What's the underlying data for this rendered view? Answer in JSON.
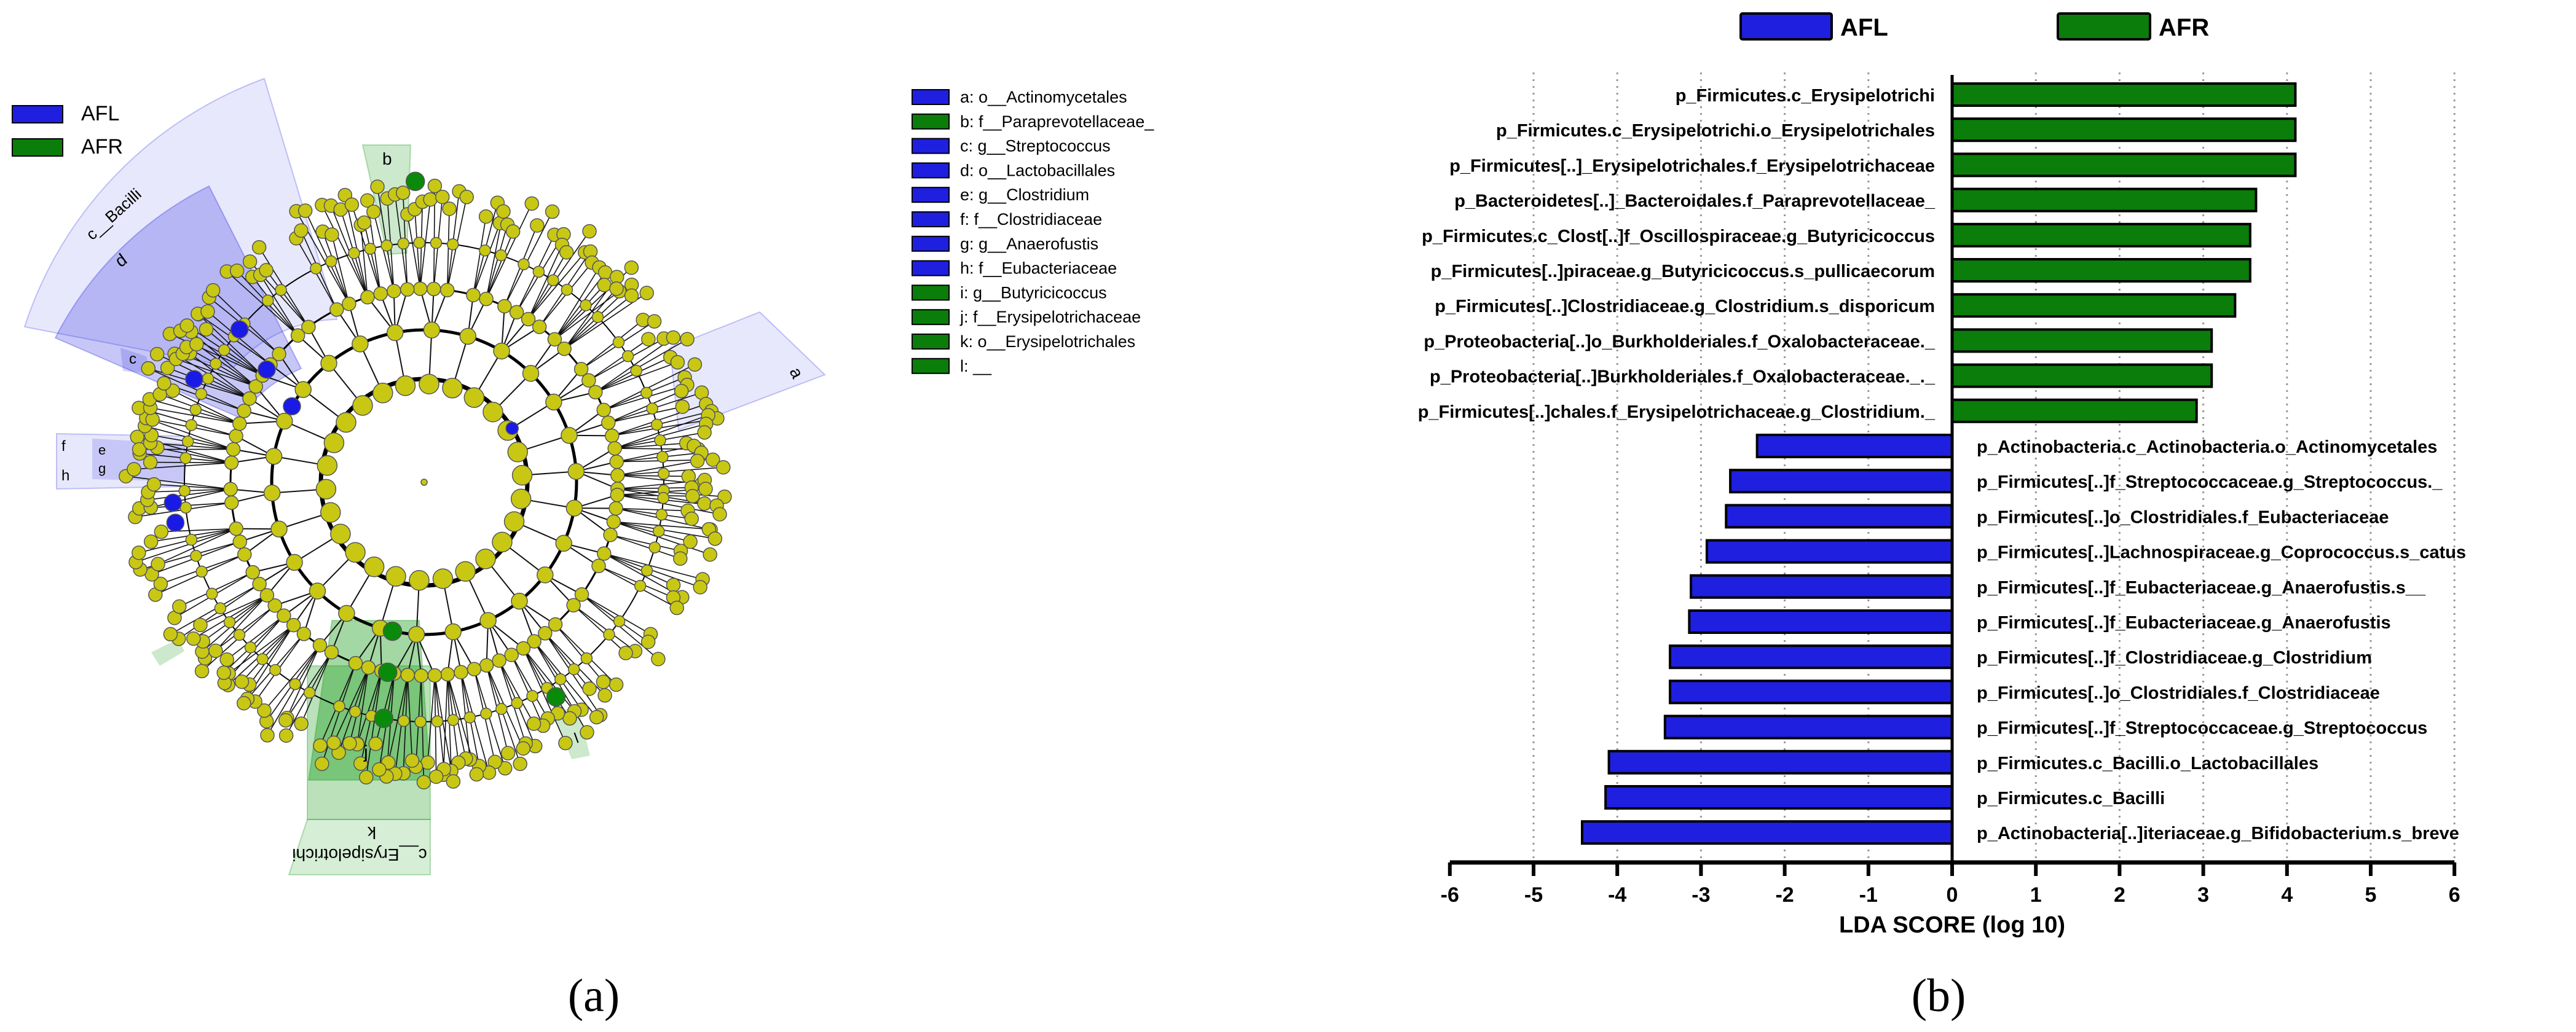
{
  "panel_a": {
    "caption": "(a)",
    "legend": [
      {
        "label": "AFL",
        "color": "#1f1fe0"
      },
      {
        "label": "AFR",
        "color": "#0a7d0a"
      }
    ],
    "key": [
      {
        "text": "a: o__Actinomycetales",
        "group": "AFL"
      },
      {
        "text": "b: f__Paraprevotellaceae_",
        "group": "AFR"
      },
      {
        "text": "c: g__Streptococcus",
        "group": "AFL"
      },
      {
        "text": "d: o__Lactobacillales",
        "group": "AFL"
      },
      {
        "text": "e: g__Clostridium",
        "group": "AFL"
      },
      {
        "text": "f: f__Clostridiaceae",
        "group": "AFL"
      },
      {
        "text": "g: g__Anaerofustis",
        "group": "AFL"
      },
      {
        "text": "h: f__Eubacteriaceae",
        "group": "AFL"
      },
      {
        "text": "i: g__Butyricicoccus",
        "group": "AFR"
      },
      {
        "text": "j: f__Erysipelotrichaceae",
        "group": "AFR"
      },
      {
        "text": "k: o__Erysipelotrichales",
        "group": "AFR"
      },
      {
        "text": "l: __",
        "group": "AFR"
      }
    ],
    "clade_labels": {
      "bacilli": "c__Bacilli",
      "erysipelotrichi": "c__Erysipelotrichi",
      "d": "d",
      "b": "b",
      "a": "a",
      "c": "c",
      "e": "e",
      "f": "f",
      "g": "g",
      "h": "h",
      "j": "j",
      "k": "k",
      "l": "l"
    },
    "colors": {
      "node": "#c8c814",
      "afl_node": "#1a1ae6",
      "afr_node": "#0a8a0a",
      "afl_shade": "#1f1fe0",
      "afr_shade": "#1a9a1a"
    }
  },
  "chart_data": {
    "type": "bar",
    "orientation": "horizontal",
    "caption": "(b)",
    "xlabel": "LDA SCORE (log 10)",
    "xlim": [
      -6,
      6
    ],
    "xticks": [
      -6,
      -5,
      -4,
      -3,
      -2,
      -1,
      0,
      1,
      2,
      3,
      4,
      5,
      6
    ],
    "grid": "vertical dotted",
    "legend_position": "top",
    "legend": [
      {
        "name": "AFL",
        "color": "#1f1fe0"
      },
      {
        "name": "AFR",
        "color": "#0a7d0a"
      }
    ],
    "bars": [
      {
        "label": "p_Firmicutes.c_Erysipelotrichi",
        "value": 4.1,
        "group": "AFR"
      },
      {
        "label": "p_Firmicutes.c_Erysipelotrichi.o_Erysipelotrichales",
        "value": 4.1,
        "group": "AFR"
      },
      {
        "label": "p_Firmicutes[..]_Erysipelotrichales.f_Erysipelotrichaceae",
        "value": 4.1,
        "group": "AFR"
      },
      {
        "label": "p_Bacteroidetes[..]_Bacteroidales.f_Paraprevotellaceae_",
        "value": 3.63,
        "group": "AFR"
      },
      {
        "label": "p_Firmicutes.c_Clost[..]f_Oscillospiraceae.g_Butyricicoccus",
        "value": 3.56,
        "group": "AFR"
      },
      {
        "label": "p_Firmicutes[..]piraceae.g_Butyricicoccus.s_pullicaecorum",
        "value": 3.56,
        "group": "AFR"
      },
      {
        "label": "p_Firmicutes[..]Clostridiaceae.g_Clostridium.s_disporicum",
        "value": 3.38,
        "group": "AFR"
      },
      {
        "label": "p_Proteobacteria[..]o_Burkholderiales.f_Oxalobacteraceae._",
        "value": 3.1,
        "group": "AFR"
      },
      {
        "label": "p_Proteobacteria[..]Burkholderiales.f_Oxalobacteraceae._._",
        "value": 3.1,
        "group": "AFR"
      },
      {
        "label": "p_Firmicutes[..]chales.f_Erysipelotrichaceae.g_Clostridium._",
        "value": 2.92,
        "group": "AFR"
      },
      {
        "label": "p_Actinobacteria.c_Actinobacteria.o_Actinomycetales",
        "value": -2.33,
        "group": "AFL"
      },
      {
        "label": "p_Firmicutes[..]f_Streptococcaceae.g_Streptococcus._",
        "value": -2.65,
        "group": "AFL"
      },
      {
        "label": "p_Firmicutes[..]o_Clostridiales.f_Eubacteriaceae",
        "value": -2.7,
        "group": "AFL"
      },
      {
        "label": "p_Firmicutes[..]Lachnospiraceae.g_Coprococcus.s_catus",
        "value": -2.93,
        "group": "AFL"
      },
      {
        "label": "p_Firmicutes[..]f_Eubacteriaceae.g_Anaerofustis.s__",
        "value": -3.12,
        "group": "AFL"
      },
      {
        "label": "p_Firmicutes[..]f_Eubacteriaceae.g_Anaerofustis",
        "value": -3.14,
        "group": "AFL"
      },
      {
        "label": "p_Firmicutes[..]f_Clostridiaceae.g_Clostridium",
        "value": -3.37,
        "group": "AFL"
      },
      {
        "label": "p_Firmicutes[..]o_Clostridiales.f_Clostridiaceae",
        "value": -3.37,
        "group": "AFL"
      },
      {
        "label": "p_Firmicutes[..]f_Streptococcaceae.g_Streptococcus",
        "value": -3.43,
        "group": "AFL"
      },
      {
        "label": "p_Firmicutes.c_Bacilli.o_Lactobacillales",
        "value": -4.1,
        "group": "AFL"
      },
      {
        "label": "p_Firmicutes.c_Bacilli",
        "value": -4.14,
        "group": "AFL"
      },
      {
        "label": "p_Actinobacteria[..]iteriaceae.g_Bifidobacterium.s_breve",
        "value": -4.42,
        "group": "AFL"
      }
    ]
  }
}
